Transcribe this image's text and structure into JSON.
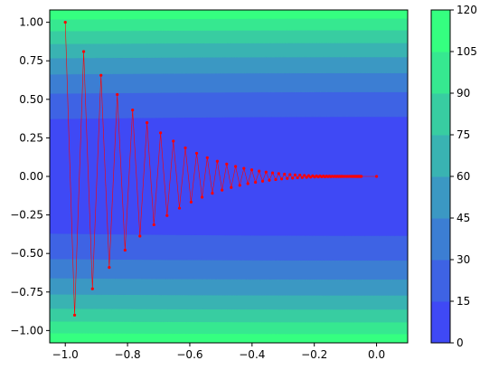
{
  "chart_data": {
    "type": "contour",
    "title": "",
    "xlabel": "",
    "ylabel": "",
    "xlim": [
      -1.05,
      0.1
    ],
    "ylim": [
      -1.08,
      1.08
    ],
    "x_ticks": [
      -1.0,
      -0.8,
      -0.6,
      -0.4,
      -0.2,
      0.0
    ],
    "x_tick_labels": [
      "−1.0",
      "−0.8",
      "−0.6",
      "−0.4",
      "−0.2",
      "0.0"
    ],
    "y_ticks": [
      1.0,
      0.75,
      0.5,
      0.25,
      0.0,
      -0.25,
      -0.5,
      -0.75,
      -1.0
    ],
    "y_tick_labels": [
      "1.00",
      "0.75",
      "0.50",
      "0.25",
      "0.00",
      "−0.25",
      "−0.50",
      "−0.75",
      "−1.00"
    ],
    "contour_levels": [
      0,
      15,
      30,
      45,
      60,
      75,
      90,
      105,
      120
    ],
    "contour_colors": [
      "#3f49f5",
      "#3e63e4",
      "#3c7ed3",
      "#3b98c3",
      "#39b3b2",
      "#38cda1",
      "#36e890",
      "#35ff80"
    ],
    "surface": "f(x, y) = x^2 + 100 y^2",
    "colorbar": {
      "range": [
        0,
        120
      ],
      "ticks": [
        0,
        15,
        30,
        45,
        60,
        75,
        90,
        105,
        120
      ],
      "tick_labels": [
        "0",
        "15",
        "30",
        "45",
        "60",
        "75",
        "90",
        "105",
        "120"
      ]
    },
    "series": [
      {
        "style": "red line with dot markers",
        "color": "#ff0000",
        "start": [
          -1.0,
          1.0
        ],
        "x_step_factor": 0.97,
        "y_step_factor": -0.9,
        "points_count": 100,
        "end": [
          0.0,
          0.0
        ]
      }
    ]
  }
}
